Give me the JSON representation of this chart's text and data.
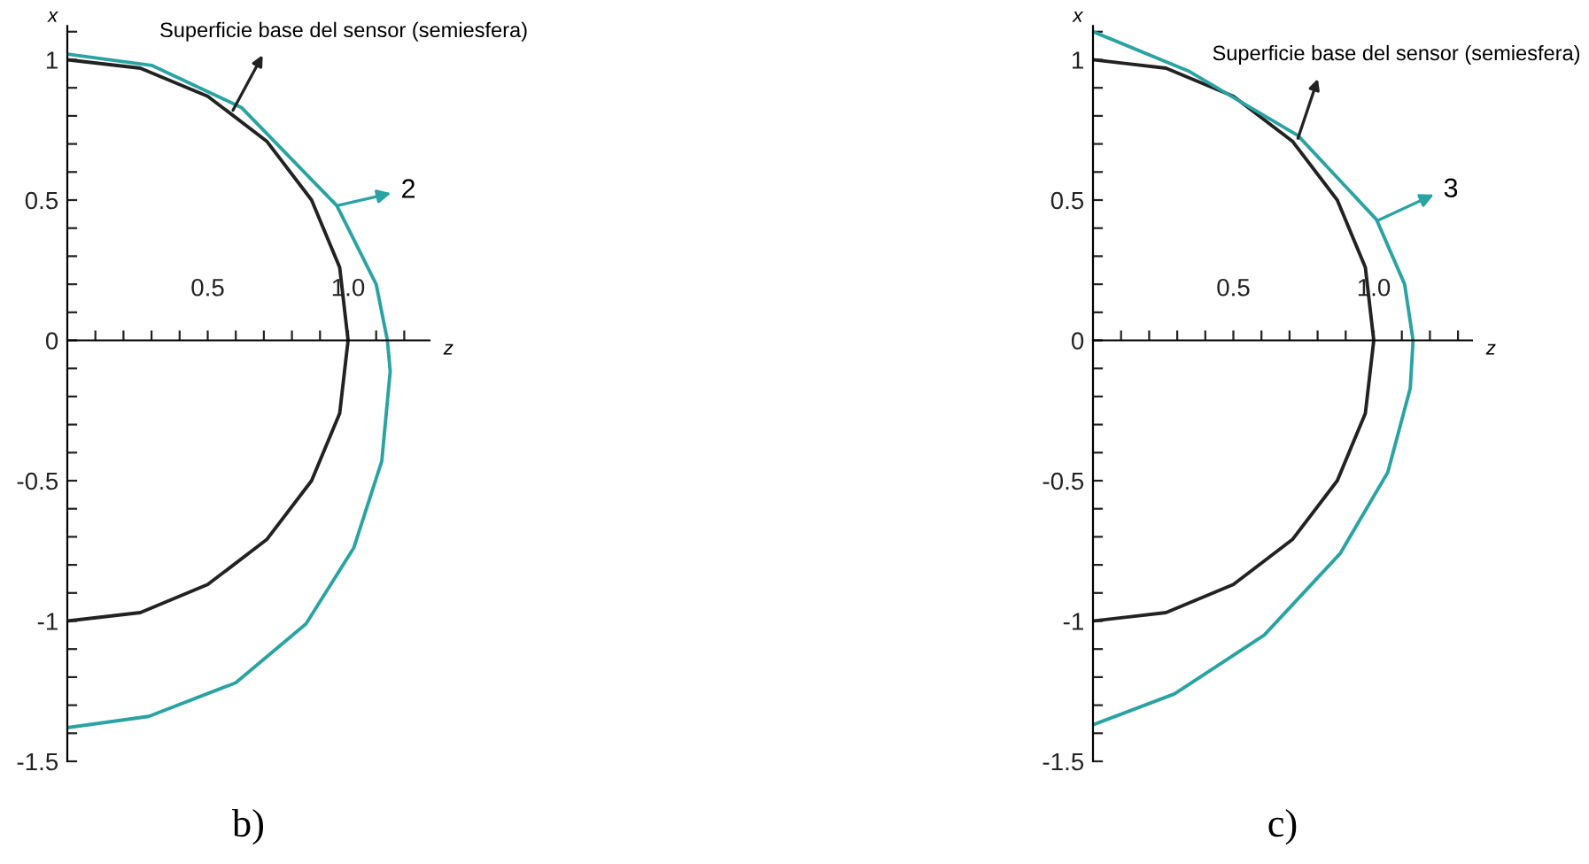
{
  "chart_data": [
    {
      "type": "line",
      "title": "b)",
      "xlabel": "z",
      "ylabel": "x",
      "xlim": [
        0,
        1.29
      ],
      "ylim": [
        -1.5,
        1.12
      ],
      "xticks": [
        {
          "value": 0.1,
          "label": null
        },
        {
          "value": 0.2,
          "label": null
        },
        {
          "value": 0.3,
          "label": null
        },
        {
          "value": 0.4,
          "label": null
        },
        0.5,
        {
          "value": 0.6,
          "label": null
        },
        {
          "value": 0.7,
          "label": null
        },
        {
          "value": 0.8,
          "label": null
        },
        {
          "value": 0.9,
          "label": null
        },
        {
          "value": 1.0,
          "label": "1.0"
        },
        {
          "value": 1.1,
          "label": null
        },
        {
          "value": 1.2,
          "label": null
        }
      ],
      "yticks": [
        -1.5,
        {
          "value": -1.4,
          "label": null
        },
        {
          "value": -1.3,
          "label": null
        },
        {
          "value": -1.2,
          "label": null
        },
        {
          "value": -1.1,
          "label": null
        },
        -1,
        {
          "value": -0.9,
          "label": null
        },
        {
          "value": -0.8,
          "label": null
        },
        {
          "value": -0.7,
          "label": null
        },
        {
          "value": -0.6,
          "label": null
        },
        -0.5,
        {
          "value": -0.4,
          "label": null
        },
        {
          "value": -0.3,
          "label": null
        },
        {
          "value": -0.2,
          "label": null
        },
        {
          "value": -0.1,
          "label": null
        },
        0,
        {
          "value": 0.1,
          "label": null
        },
        {
          "value": 0.2,
          "label": null
        },
        {
          "value": 0.3,
          "label": null
        },
        {
          "value": 0.4,
          "label": null
        },
        0.5,
        {
          "value": 0.6,
          "label": null
        },
        {
          "value": 0.7,
          "label": null
        },
        {
          "value": 0.8,
          "label": null
        },
        {
          "value": 0.9,
          "label": null
        },
        1,
        {
          "value": 1.1,
          "label": null
        }
      ],
      "grid": false,
      "legend": false,
      "series": [
        {
          "color": "#222222",
          "x": [
            0,
            0.26,
            0.5,
            0.71,
            0.87,
            0.97,
            1.0,
            0.97,
            0.87,
            0.71,
            0.5,
            0.26,
            0
          ],
          "values": [
            1.0,
            0.97,
            0.87,
            0.71,
            0.5,
            0.26,
            0,
            -0.26,
            -0.5,
            -0.71,
            -0.87,
            -0.97,
            -1.0
          ]
        },
        {
          "color": "#2aa3a3",
          "x": [
            0,
            0.3,
            0.62,
            0.96,
            1.1,
            1.14,
            1.15,
            1.12,
            1.02,
            0.85,
            0.6,
            0.29,
            0
          ],
          "values": [
            1.02,
            0.98,
            0.83,
            0.48,
            0.2,
            0,
            -0.11,
            -0.43,
            -0.74,
            -1.01,
            -1.22,
            -1.34,
            -1.38
          ]
        }
      ],
      "annotations": [
        {
          "text": "Superficie base del sensor (semiesfera)",
          "x": 0.59,
          "y": 0.82
        },
        {
          "text": "2",
          "x": 0.96,
          "y": 0.48
        }
      ]
    },
    {
      "type": "line",
      "title": "c)",
      "xlabel": "z",
      "ylabel": "x",
      "xlim": [
        0,
        1.35
      ],
      "ylim": [
        -1.5,
        1.12
      ],
      "xticks": [
        {
          "value": 0.1,
          "label": null
        },
        {
          "value": 0.2,
          "label": null
        },
        {
          "value": 0.3,
          "label": null
        },
        {
          "value": 0.4,
          "label": null
        },
        0.5,
        {
          "value": 0.6,
          "label": null
        },
        {
          "value": 0.7,
          "label": null
        },
        {
          "value": 0.8,
          "label": null
        },
        {
          "value": 0.9,
          "label": null
        },
        {
          "value": 1.0,
          "label": "1.0"
        },
        {
          "value": 1.1,
          "label": null
        },
        {
          "value": 1.2,
          "label": null
        },
        {
          "value": 1.3,
          "label": null
        }
      ],
      "yticks": [
        -1.5,
        {
          "value": -1.4,
          "label": null
        },
        {
          "value": -1.3,
          "label": null
        },
        {
          "value": -1.2,
          "label": null
        },
        {
          "value": -1.1,
          "label": null
        },
        -1,
        {
          "value": -0.9,
          "label": null
        },
        {
          "value": -0.8,
          "label": null
        },
        {
          "value": -0.7,
          "label": null
        },
        {
          "value": -0.6,
          "label": null
        },
        -0.5,
        {
          "value": -0.4,
          "label": null
        },
        {
          "value": -0.3,
          "label": null
        },
        {
          "value": -0.2,
          "label": null
        },
        {
          "value": -0.1,
          "label": null
        },
        0,
        {
          "value": 0.1,
          "label": null
        },
        {
          "value": 0.2,
          "label": null
        },
        {
          "value": 0.3,
          "label": null
        },
        {
          "value": 0.4,
          "label": null
        },
        0.5,
        {
          "value": 0.6,
          "label": null
        },
        {
          "value": 0.7,
          "label": null
        },
        {
          "value": 0.8,
          "label": null
        },
        {
          "value": 0.9,
          "label": null
        },
        1,
        {
          "value": 1.1,
          "label": null
        }
      ],
      "grid": false,
      "legend": false,
      "series": [
        {
          "color": "#222222",
          "x": [
            0,
            0.26,
            0.5,
            0.71,
            0.87,
            0.97,
            1.0,
            0.97,
            0.87,
            0.71,
            0.5,
            0.26,
            0
          ],
          "values": [
            1.0,
            0.97,
            0.87,
            0.71,
            0.5,
            0.26,
            0,
            -0.26,
            -0.5,
            -0.71,
            -0.87,
            -0.97,
            -1.0
          ]
        },
        {
          "color": "#2aa3a3",
          "x": [
            0,
            0.34,
            0.73,
            1.01,
            1.11,
            1.14,
            1.13,
            1.05,
            0.88,
            0.61,
            0.29,
            0
          ],
          "values": [
            1.1,
            0.96,
            0.73,
            0.43,
            0.2,
            0,
            -0.17,
            -0.47,
            -0.76,
            -1.05,
            -1.26,
            -1.37
          ]
        }
      ],
      "annotations": [
        {
          "text": "Superficie base del sensor (semiesfera)",
          "x": 0.73,
          "y": 0.72
        },
        {
          "text": "3",
          "x": 1.02,
          "y": 0.43
        }
      ]
    }
  ]
}
